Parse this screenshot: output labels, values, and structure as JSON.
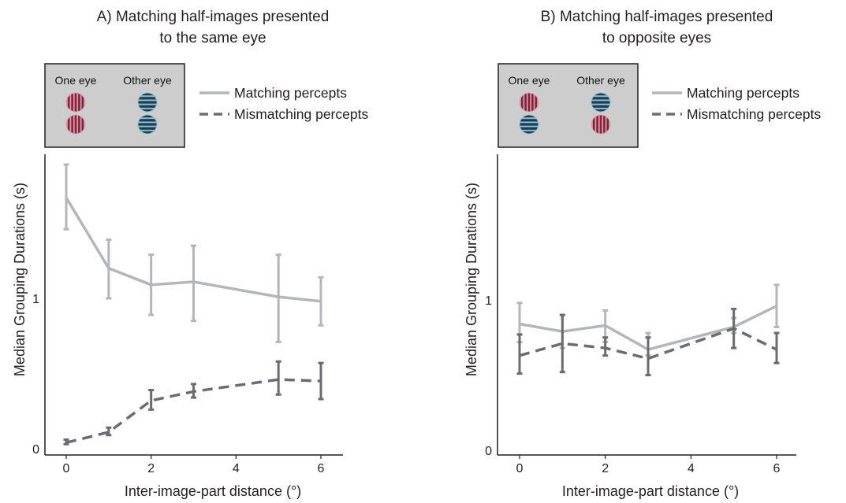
{
  "colors": {
    "matching": "#b4b6b9",
    "mismatching": "#6b6c70",
    "inset_bg": "#cdcdcd",
    "red_grating": "#c8526c",
    "blue_grating": "#3a93b5"
  },
  "chart_data": [
    {
      "type": "line",
      "title_line1": "A) Matching half-images presented",
      "title_line2": "to the same eye",
      "xlabel": "Inter-image-part distance (°)",
      "ylabel": "Median Grouping Durations (s)",
      "xlim": [
        -0.5,
        6.5
      ],
      "ylim": [
        0,
        2.0
      ],
      "x_ticks": [
        "0",
        "2",
        "4",
        "6"
      ],
      "y_ticks": [
        "0",
        "1"
      ],
      "inset": {
        "label_one": "One eye",
        "label_other": "Other eye",
        "one_eye": [
          "red",
          "red"
        ],
        "other_eye": [
          "blue",
          "blue"
        ]
      },
      "series": [
        {
          "name": "Matching percepts",
          "style": "solid",
          "x": [
            0,
            1,
            2,
            3,
            5,
            6
          ],
          "y": [
            1.67,
            1.2,
            1.09,
            1.11,
            1.01,
            0.98
          ],
          "err_low": [
            1.46,
            1.0,
            0.89,
            0.85,
            0.71,
            0.82
          ],
          "err_high": [
            1.89,
            1.39,
            1.29,
            1.35,
            1.29,
            1.14
          ]
        },
        {
          "name": "Mismatching percepts",
          "style": "dashed",
          "x": [
            0,
            1,
            2,
            3,
            5,
            6
          ],
          "y": [
            0.04,
            0.11,
            0.32,
            0.38,
            0.46,
            0.45
          ],
          "err_low": [
            0.03,
            0.09,
            0.26,
            0.34,
            0.36,
            0.33
          ],
          "err_high": [
            0.06,
            0.14,
            0.39,
            0.43,
            0.58,
            0.57
          ]
        }
      ]
    },
    {
      "type": "line",
      "title_line1": "B) Matching half-images presented",
      "title_line2": "to opposite eyes",
      "xlabel": "Inter-image-part distance (°)",
      "ylabel": "Median Grouping Durations (s)",
      "xlim": [
        -0.5,
        6.5
      ],
      "ylim": [
        0,
        2.0
      ],
      "x_ticks": [
        "0",
        "2",
        "4",
        "6"
      ],
      "y_ticks": [
        "0",
        "1"
      ],
      "inset": {
        "label_one": "One eye",
        "label_other": "Other eye",
        "one_eye": [
          "red",
          "blue"
        ],
        "other_eye": [
          "blue",
          "red"
        ]
      },
      "series": [
        {
          "name": "Matching percepts",
          "style": "solid",
          "x": [
            0,
            1,
            2,
            3,
            5,
            6
          ],
          "y": [
            0.84,
            0.79,
            0.83,
            0.67,
            0.82,
            0.96
          ],
          "err_low": [
            0.72,
            0.68,
            0.72,
            0.63,
            0.78,
            0.82
          ],
          "err_high": [
            0.98,
            0.9,
            0.93,
            0.78,
            0.88,
            1.1
          ]
        },
        {
          "name": "Mismatching percepts",
          "style": "dashed",
          "x": [
            0,
            1,
            2,
            3,
            5,
            6
          ],
          "y": [
            0.63,
            0.71,
            0.68,
            0.61,
            0.81,
            0.67
          ],
          "err_low": [
            0.51,
            0.52,
            0.63,
            0.5,
            0.68,
            0.58
          ],
          "err_high": [
            0.77,
            0.9,
            0.75,
            0.75,
            0.94,
            0.78
          ]
        }
      ]
    }
  ]
}
